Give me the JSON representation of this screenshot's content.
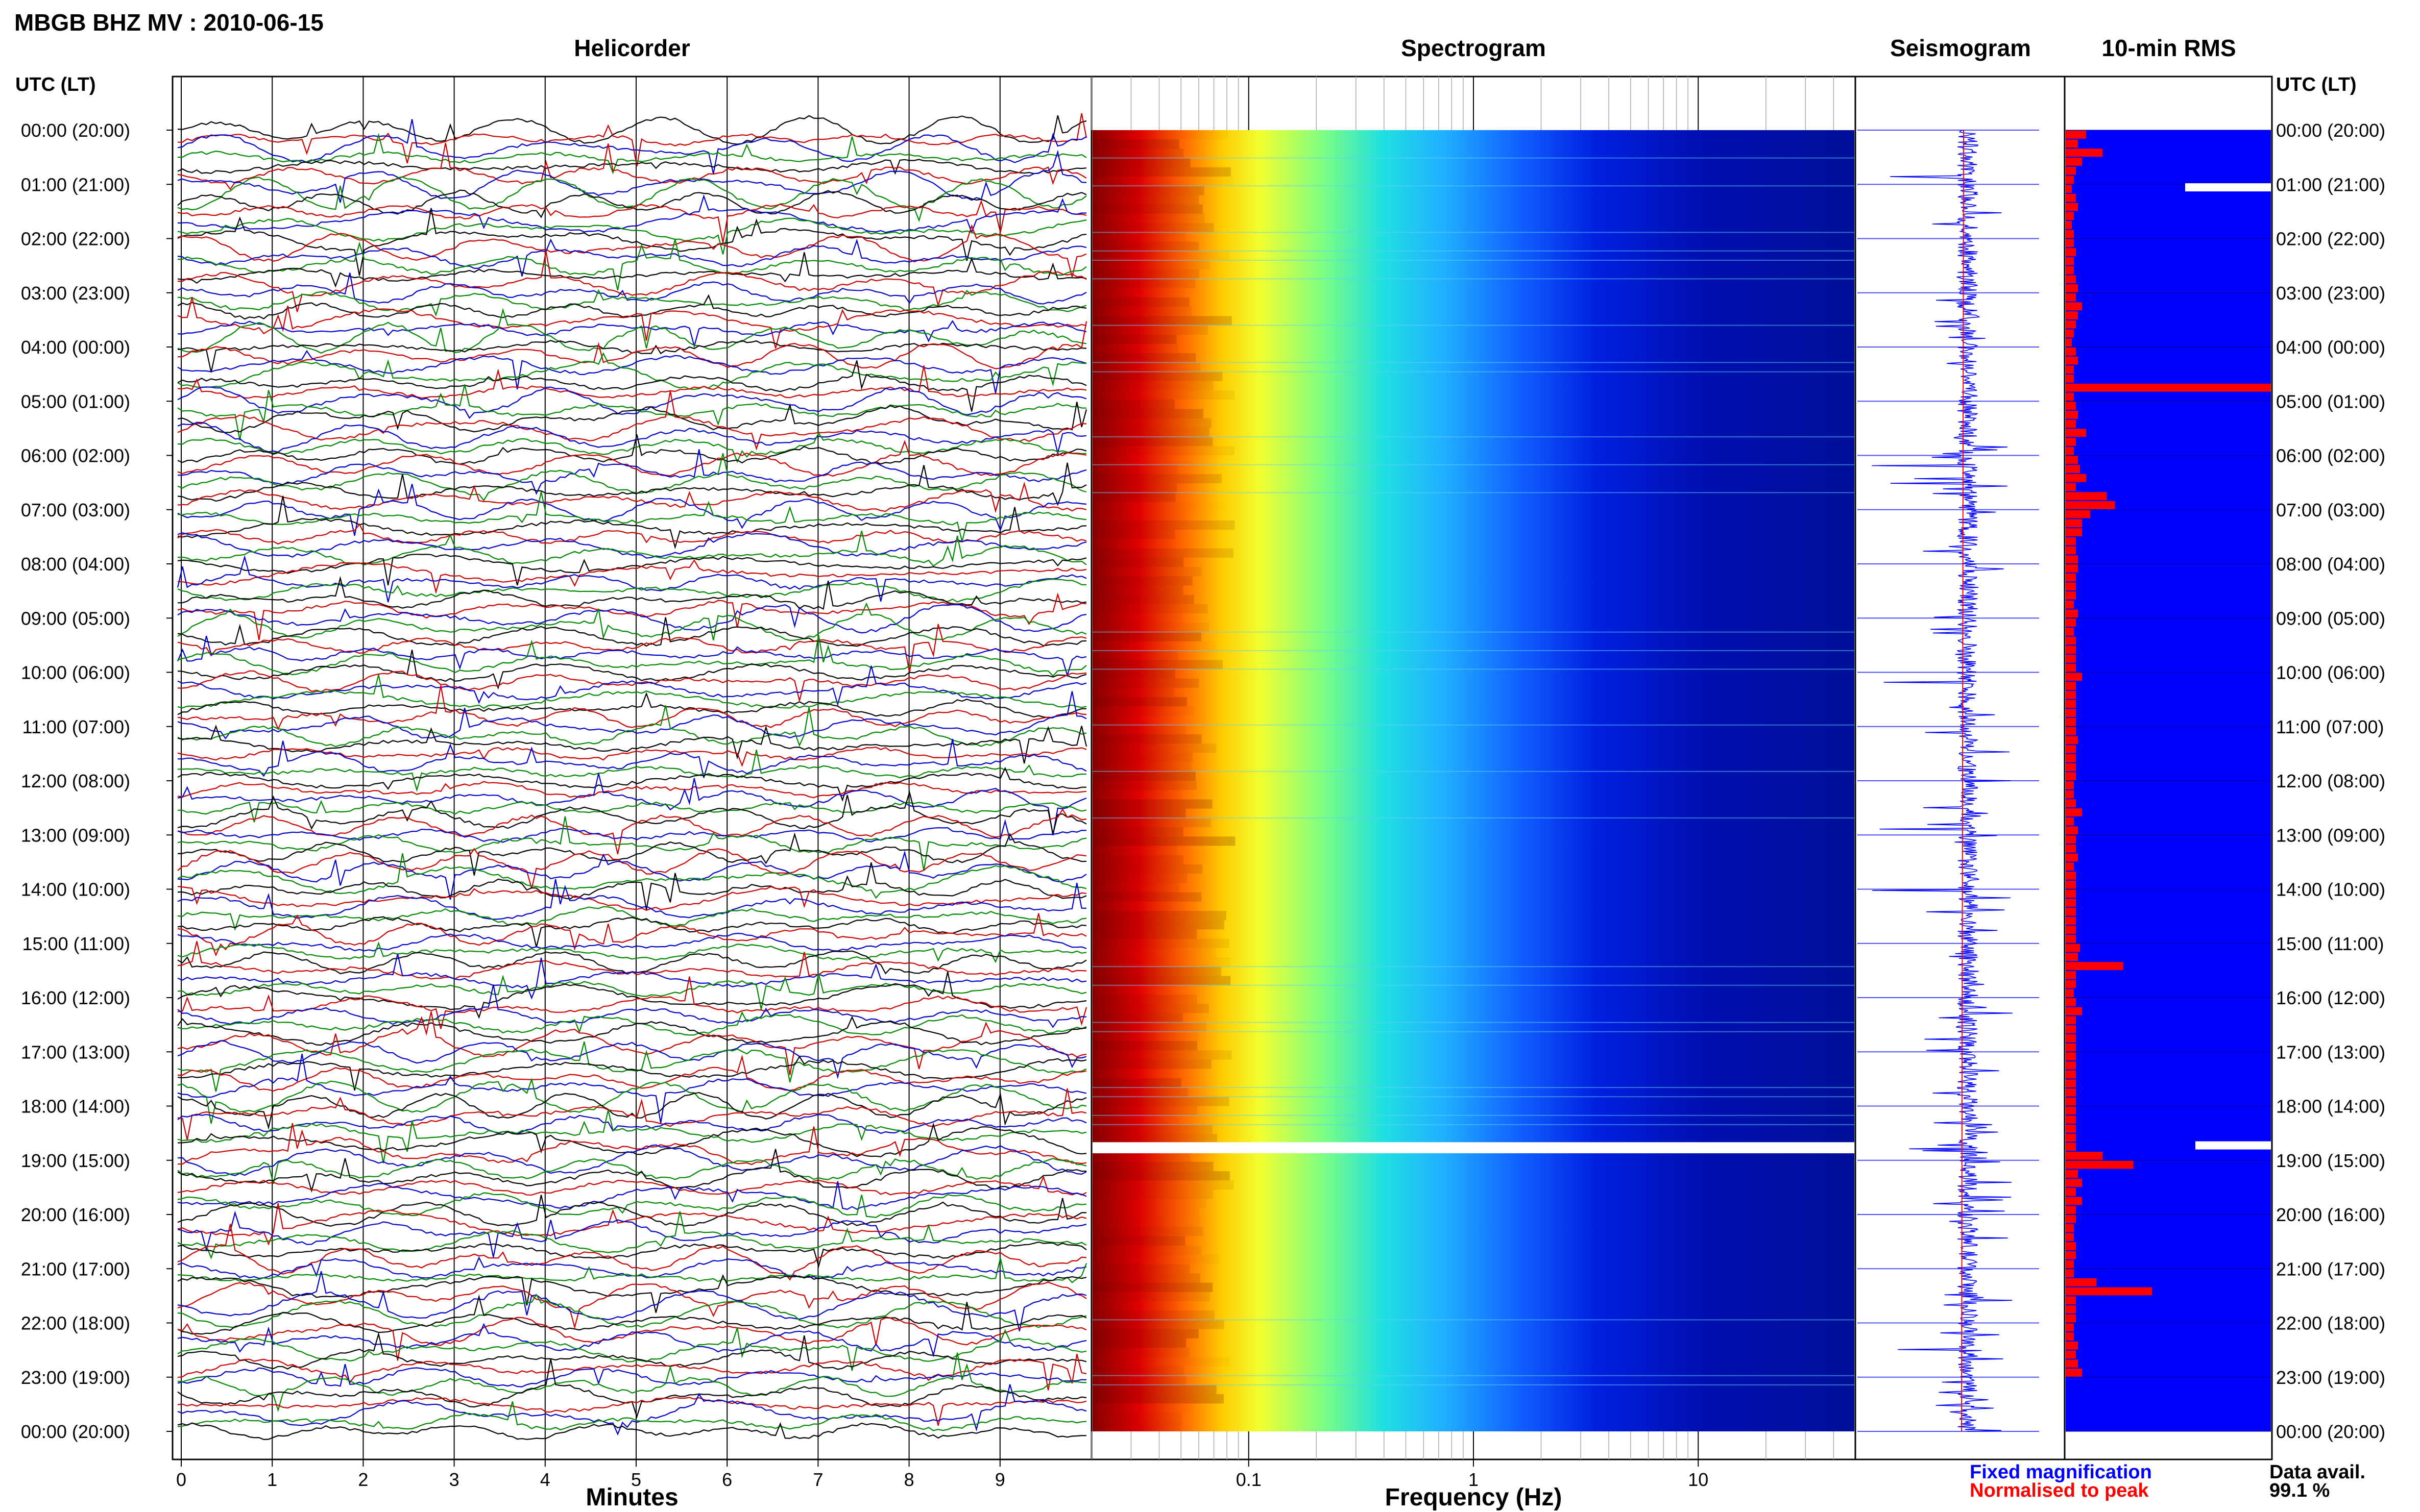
{
  "header": {
    "title": "MBGB BHZ MV : 2010-06-15"
  },
  "panels": {
    "helicorder": "Helicorder",
    "spectrogram": "Spectrogram",
    "seismogram": "Seismogram",
    "rms": "10-min RMS"
  },
  "time_axis": {
    "label": "UTC (LT)",
    "ticks": [
      "00:00 (20:00)",
      "01:00 (21:00)",
      "02:00 (22:00)",
      "03:00 (23:00)",
      "04:00 (00:00)",
      "05:00 (01:00)",
      "06:00 (02:00)",
      "07:00 (03:00)",
      "08:00 (04:00)",
      "09:00 (05:00)",
      "10:00 (06:00)",
      "11:00 (07:00)",
      "12:00 (08:00)",
      "13:00 (09:00)",
      "14:00 (10:00)",
      "15:00 (11:00)",
      "16:00 (12:00)",
      "17:00 (13:00)",
      "18:00 (14:00)",
      "19:00 (15:00)",
      "20:00 (16:00)",
      "21:00 (17:00)",
      "22:00 (18:00)",
      "23:00 (19:00)",
      "00:00 (20:00)"
    ]
  },
  "footer": {
    "legend_fixed": "Fixed magnification",
    "legend_normalised": "Normalised to peak",
    "data_avail_label": "Data avail.",
    "data_avail_value": "99.1 %"
  },
  "colors": {
    "trace_colors": [
      "#000000",
      "#cc0000",
      "#0000cc",
      "#008800"
    ],
    "fixed_magnification": "#0000ff",
    "normalised_to_peak": "#ff0000",
    "rms_background": "#0000ff",
    "rms_bar": "#ff0000",
    "seismogram_trace": "#0000ff"
  },
  "chart_data": [
    {
      "type": "line",
      "panel": "Helicorder",
      "xlabel": "Minutes",
      "xlim": [
        0,
        10
      ],
      "x_ticks": [
        0,
        1,
        2,
        3,
        4,
        5,
        6,
        7,
        8,
        9
      ],
      "lines_per_hour": 6,
      "hours": 24
    },
    {
      "type": "heatmap",
      "panel": "Spectrogram",
      "xlabel": "Frequency (Hz)",
      "xscale": "log",
      "xlim": [
        0.02,
        50
      ],
      "x_ticks": [
        0.1,
        1,
        10
      ],
      "x_tick_labels": [
        "0.1",
        "1",
        "10"
      ],
      "colormap": "jet",
      "data_gap_utc": "18:40-18:50"
    },
    {
      "type": "line",
      "panel": "Seismogram",
      "series": [
        {
          "name": "Fixed magnification"
        },
        {
          "name": "Normalised to peak"
        }
      ]
    },
    {
      "type": "bar",
      "panel": "10-min RMS",
      "orientation": "horizontal",
      "interval_minutes": 10,
      "values": [
        0.1,
        0.06,
        0.18,
        0.08,
        0.05,
        0.04,
        0.03,
        0.05,
        0.06,
        0.04,
        0.03,
        0.04,
        0.04,
        0.05,
        0.04,
        0.04,
        0.05,
        0.06,
        0.05,
        0.08,
        0.06,
        0.05,
        0.04,
        0.03,
        0.05,
        0.06,
        0.04,
        0.04,
        1.0,
        0.04,
        0.05,
        0.06,
        0.05,
        0.1,
        0.05,
        0.04,
        0.06,
        0.07,
        0.1,
        0.05,
        0.2,
        0.24,
        0.12,
        0.08,
        0.08,
        0.05,
        0.05,
        0.06,
        0.06,
        0.05,
        0.05,
        0.05,
        0.04,
        0.06,
        0.05,
        0.04,
        0.05,
        0.05,
        0.05,
        0.05,
        0.08,
        0.05,
        0.05,
        0.05,
        0.05,
        0.05,
        0.05,
        0.06,
        0.05,
        0.05,
        0.05,
        0.05,
        0.04,
        0.04,
        0.05,
        0.08,
        0.04,
        0.06,
        0.05,
        0.05,
        0.06,
        0.04,
        0.05,
        0.05,
        0.05,
        0.05,
        0.05,
        0.05,
        0.05,
        0.05,
        0.07,
        0.06,
        0.28,
        0.05,
        0.05,
        0.04,
        0.05,
        0.08,
        0.05,
        0.05,
        0.05,
        0.05,
        0.05,
        0.05,
        0.05,
        0.05,
        0.05,
        0.05,
        0.05,
        0.05,
        0.05,
        0.05,
        0.05,
        0.18,
        0.33,
        0.06,
        0.08,
        0.05,
        0.08,
        0.05,
        0.05,
        0.04,
        0.04,
        0.05,
        0.05,
        0.04,
        0.04,
        0.15,
        0.42,
        0.05,
        0.05,
        0.05,
        0.04,
        0.04,
        0.06,
        0.05,
        0.06,
        0.08
      ]
    }
  ]
}
